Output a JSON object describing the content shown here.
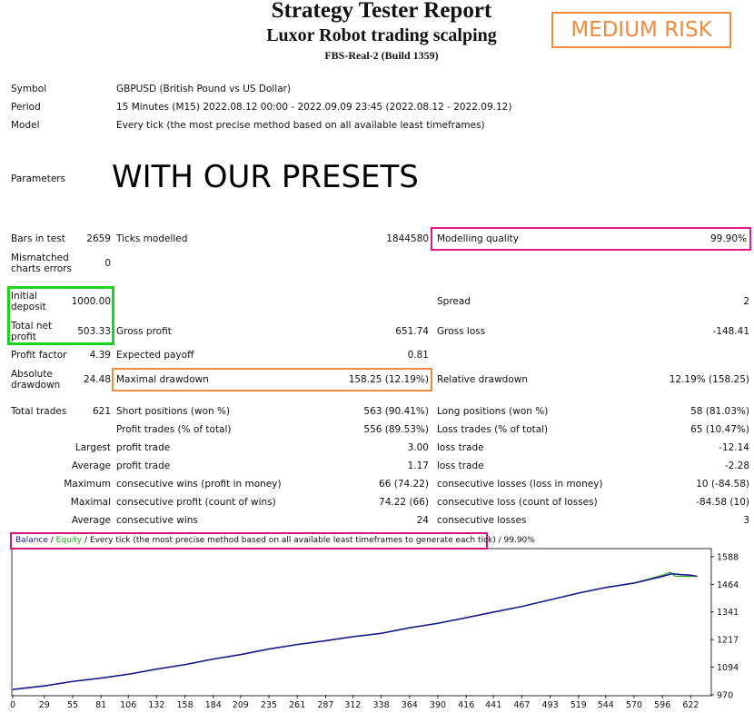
{
  "header": {
    "title": "Strategy Tester Report",
    "subtitle": "Luxor Robot trading scalping",
    "server": "FBS-Real-2 (Build 1359)",
    "risk_badge": "MEDIUM RISK"
  },
  "info": {
    "symbol_label": "Symbol",
    "symbol_value": "GBPUSD (British Pound vs US Dollar)",
    "period_label": "Period",
    "period_value": "15 Minutes (M15) 2022.08.12 00:00 - 2022.09.09 23:45 (2022.08.12 - 2022.09.12)",
    "model_label": "Model",
    "model_value": "Every tick (the most precise method based on all available least timeframes)",
    "parameters_label": "Parameters",
    "parameters_value": "WITH OUR PRESETS"
  },
  "stats": {
    "bars_label": "Bars in test",
    "bars_value": "2659",
    "ticks_label": "Ticks modelled",
    "ticks_value": "1844580",
    "quality_label": "Modelling quality",
    "quality_value": "99.90%",
    "mismatch_label_1": "Mismatched",
    "mismatch_label_2": "charts errors",
    "mismatch_value": "0",
    "deposit_label_1": "Initial",
    "deposit_label_2": "deposit",
    "deposit_value": "1000.00",
    "spread_label": "Spread",
    "spread_value": "2",
    "net_label_1": "Total net",
    "net_label_2": "profit",
    "net_value": "503.33",
    "gross_profit_label": "Gross profit",
    "gross_profit_value": "651.74",
    "gross_loss_label": "Gross loss",
    "gross_loss_value": "-148.41",
    "pf_label": "Profit factor",
    "pf_value": "4.39",
    "payoff_label": "Expected payoff",
    "payoff_value": "0.81",
    "absdd_label_1": "Absolute",
    "absdd_label_2": "drawdown",
    "absdd_value": "24.48",
    "maxdd_label": "Maximal drawdown",
    "maxdd_value": "158.25 (12.19%)",
    "reldd_label": "Relative drawdown",
    "reldd_value": "12.19% (158.25)",
    "trades_label": "Total trades",
    "trades_value": "621",
    "short_label": "Short positions (won %)",
    "short_value": "563 (90.41%)",
    "long_label": "Long positions (won %)",
    "long_value": "58 (81.03%)",
    "ptrades_label": "Profit trades (% of total)",
    "ptrades_value": "556 (89.53%)",
    "ltrades_label": "Loss trades (% of total)",
    "ltrades_value": "65 (10.47%)",
    "largest_label": "Largest",
    "largest_profit_label": "profit trade",
    "largest_profit_value": "3.00",
    "largest_loss_label": "loss trade",
    "largest_loss_value": "-12.14",
    "average_label": "Average",
    "avg_profit_label": "profit trade",
    "avg_profit_value": "1.17",
    "avg_loss_label": "loss trade",
    "avg_loss_value": "-2.28",
    "maximum_label": "Maximum",
    "max_wins_label": "consecutive wins (profit in money)",
    "max_wins_value": "66 (74.22)",
    "max_losses_label": "consecutive losses (loss in money)",
    "max_losses_value": "10 (-84.58)",
    "maximal_label": "Maximal",
    "maximal_profit_label": "consecutive profit (count of wins)",
    "maximal_profit_value": "74.22 (66)",
    "maximal_loss_label": "consecutive loss (count of losses)",
    "maximal_loss_value": "-84.58 (10)",
    "average2_label": "Average",
    "avg_wins_label": "consecutive wins",
    "avg_wins_value": "24",
    "avg_losses_label": "consecutive losses",
    "avg_losses_value": "3"
  },
  "chart_data": {
    "type": "line",
    "legend": {
      "balance": "Balance",
      "sep1": " / ",
      "equity": "Equity",
      "rest": " / Every tick (the most precise method based on all available least timeframes to generate each tick)",
      "quality": " / 99.90%"
    },
    "x_ticks": [
      "0",
      "29",
      "55",
      "81",
      "106",
      "132",
      "158",
      "184",
      "209",
      "235",
      "261",
      "287",
      "312",
      "338",
      "364",
      "390",
      "416",
      "441",
      "467",
      "493",
      "519",
      "544",
      "570",
      "596",
      "622"
    ],
    "y_ticks": [
      "1588",
      "1464",
      "1341",
      "1217",
      "1094",
      "970"
    ],
    "xlim": [
      0,
      640
    ],
    "ylim": [
      970,
      1620
    ],
    "balance": {
      "x": [
        0,
        29,
        55,
        81,
        106,
        132,
        158,
        184,
        209,
        235,
        261,
        287,
        312,
        338,
        364,
        390,
        416,
        441,
        467,
        493,
        519,
        544,
        570,
        596,
        605,
        612,
        622,
        628
      ],
      "y": [
        994,
        1010,
        1030,
        1045,
        1062,
        1085,
        1105,
        1130,
        1150,
        1175,
        1195,
        1212,
        1230,
        1245,
        1270,
        1290,
        1315,
        1340,
        1365,
        1395,
        1425,
        1450,
        1470,
        1500,
        1512,
        1508,
        1505,
        1500
      ]
    },
    "equity": {
      "x": [
        0,
        29,
        55,
        81,
        106,
        132,
        158,
        184,
        209,
        235,
        261,
        287,
        312,
        338,
        364,
        390,
        416,
        441,
        467,
        493,
        519,
        544,
        570,
        596,
        603,
        608,
        612,
        622,
        628
      ],
      "y": [
        994,
        1010,
        1030,
        1045,
        1062,
        1085,
        1105,
        1130,
        1150,
        1175,
        1195,
        1212,
        1230,
        1245,
        1270,
        1290,
        1315,
        1340,
        1365,
        1395,
        1425,
        1450,
        1470,
        1505,
        1518,
        1500,
        1500,
        1500,
        1500
      ]
    },
    "colors": {
      "balance": "#1a1a8c",
      "equity": "#22aa22",
      "axis": "#333333"
    }
  }
}
